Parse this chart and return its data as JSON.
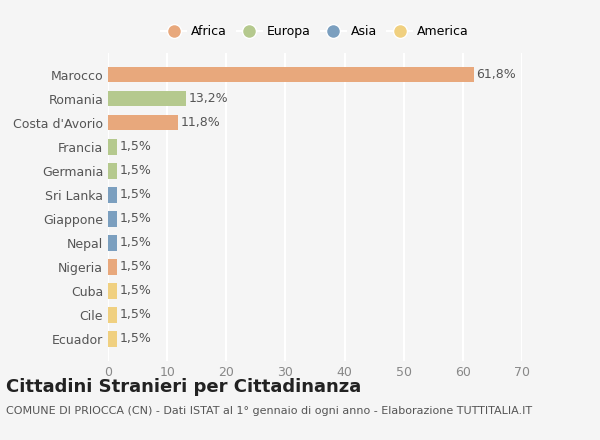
{
  "categories": [
    "Marocco",
    "Romania",
    "Costa d'Avorio",
    "Francia",
    "Germania",
    "Sri Lanka",
    "Giappone",
    "Nepal",
    "Nigeria",
    "Cuba",
    "Cile",
    "Ecuador"
  ],
  "values": [
    61.8,
    13.2,
    11.8,
    1.5,
    1.5,
    1.5,
    1.5,
    1.5,
    1.5,
    1.5,
    1.5,
    1.5
  ],
  "labels": [
    "61,8%",
    "13,2%",
    "11,8%",
    "1,5%",
    "1,5%",
    "1,5%",
    "1,5%",
    "1,5%",
    "1,5%",
    "1,5%",
    "1,5%",
    "1,5%"
  ],
  "colors": [
    "#E8A87C",
    "#B5C98E",
    "#E8A87C",
    "#B5C98E",
    "#B5C98E",
    "#7B9FBF",
    "#7B9FBF",
    "#7B9FBF",
    "#E8A87C",
    "#F0D080",
    "#F0D080",
    "#F0D080"
  ],
  "legend_labels": [
    "Africa",
    "Europa",
    "Asia",
    "America"
  ],
  "legend_colors": [
    "#E8A87C",
    "#B5C98E",
    "#7B9FBF",
    "#F0D080"
  ],
  "title": "Cittadini Stranieri per Cittadinanza",
  "subtitle": "COMUNE DI PRIOCCA (CN) - Dati ISTAT al 1° gennaio di ogni anno - Elaborazione TUTTITALIA.IT",
  "xlim": [
    0,
    70
  ],
  "xticks": [
    0,
    10,
    20,
    30,
    40,
    50,
    60,
    70
  ],
  "background_color": "#f5f5f5",
  "grid_color": "#ffffff",
  "title_fontsize": 13,
  "subtitle_fontsize": 8,
  "tick_fontsize": 9,
  "label_fontsize": 9,
  "legend_fontsize": 9
}
